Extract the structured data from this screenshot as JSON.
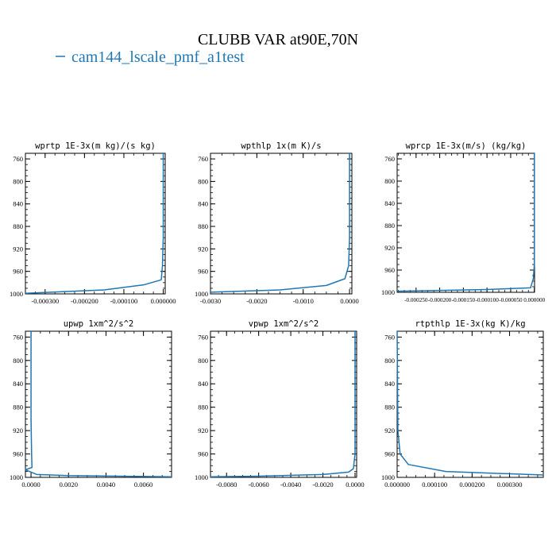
{
  "figure": {
    "title": "CLUBB VAR at90E,70N",
    "legend_label": "cam144_lscale_pmf_a1test",
    "legend_color": "#1f77b4",
    "line_color": "#1f77b4"
  },
  "chart_data": [
    {
      "type": "line",
      "title": "wprtp  1E-3x(m kg)/(s kg)",
      "xlim": [
        -0.00035,
        5e-06
      ],
      "ylim": [
        1000,
        750
      ],
      "xticks": [
        -0.0003,
        -0.0002,
        -0.0001,
        0.0
      ],
      "xtick_labels": [
        "-0.000300",
        "-0.000200",
        "-0.000100",
        "0.000000"
      ],
      "yticks": [
        760,
        800,
        840,
        880,
        920,
        960,
        1000
      ],
      "ytick_labels": [
        "760",
        "800",
        "840",
        "880",
        "920",
        "960",
        "1000"
      ],
      "series": [
        {
          "x": [
            0,
            0,
            0,
            -2e-06,
            -5e-06,
            -5e-05,
            -0.00015,
            -0.00035
          ],
          "y": [
            750,
            800,
            900,
            950,
            975,
            984,
            993,
            999
          ]
        }
      ]
    },
    {
      "type": "line",
      "title": "wpthlp  1x(m K)/s",
      "xlim": [
        -0.003,
        5e-05
      ],
      "ylim": [
        1000,
        750
      ],
      "xticks": [
        -0.003,
        -0.002,
        -0.001,
        0.0
      ],
      "xtick_labels": [
        "-0.0030",
        "-0.0020",
        "-0.0010",
        "0.0000"
      ],
      "yticks": [
        760,
        800,
        840,
        880,
        920,
        960,
        1000
      ],
      "ytick_labels": [
        "760",
        "800",
        "840",
        "880",
        "920",
        "960",
        "1000"
      ],
      "series": [
        {
          "x": [
            0,
            0,
            0,
            -2e-05,
            -0.0001,
            -0.0005,
            -0.0015,
            -0.003
          ],
          "y": [
            750,
            800,
            900,
            950,
            973,
            985,
            993,
            997
          ]
        }
      ]
    },
    {
      "type": "line",
      "title": "wprcp  1E-3x(m/s) (kg/kg)",
      "xlim": [
        -0.00029,
        5e-07
      ],
      "ylim": [
        1000,
        750
      ],
      "xticks": [
        -0.00025,
        -0.0002,
        -0.00015,
        -0.0001,
        -5e-05,
        0.0
      ],
      "xtick_labels": [
        "-0.000250",
        "-0.000200",
        "-0.000150",
        "-0.000100",
        "-0.000050",
        "0.000000"
      ],
      "yticks": [
        760,
        800,
        840,
        880,
        920,
        960,
        1000
      ],
      "ytick_labels": [
        "760",
        "800",
        "840",
        "880",
        "920",
        "960",
        "1000"
      ],
      "series": [
        {
          "x": [
            0,
            0,
            0,
            -2e-06,
            -8e-06,
            -0.0001,
            -0.00029
          ],
          "y": [
            750,
            800,
            950,
            975,
            992,
            995,
            998
          ]
        }
      ]
    },
    {
      "type": "line",
      "title": "upwp  1xm^2/s^2",
      "xlim": [
        -0.0003,
        0.0075
      ],
      "ylim": [
        1000,
        750
      ],
      "xticks": [
        0.0,
        0.002,
        0.004,
        0.006
      ],
      "xtick_labels": [
        "0.0000",
        "0.0020",
        "0.0040",
        "0.0060"
      ],
      "yticks": [
        760,
        800,
        840,
        880,
        920,
        960,
        1000
      ],
      "ytick_labels": [
        "760",
        "800",
        "840",
        "880",
        "920",
        "960",
        "1000"
      ],
      "series": [
        {
          "x": [
            0,
            0,
            3e-05,
            5e-05,
            -0.0003,
            0.0003,
            0.002,
            0.0075
          ],
          "y": [
            750,
            900,
            960,
            983,
            987,
            995,
            997,
            999
          ]
        }
      ]
    },
    {
      "type": "line",
      "title": "vpwp  1xm^2/s^2",
      "xlim": [
        -0.009,
        0.0001
      ],
      "ylim": [
        1000,
        750
      ],
      "xticks": [
        -0.008,
        -0.006,
        -0.004,
        -0.002,
        0.0
      ],
      "xtick_labels": [
        "-0.0080",
        "-0.0060",
        "-0.0040",
        "-0.0020",
        "0.0000"
      ],
      "yticks": [
        760,
        800,
        840,
        880,
        920,
        960,
        1000
      ],
      "ytick_labels": [
        "760",
        "800",
        "840",
        "880",
        "920",
        "960",
        "1000"
      ],
      "series": [
        {
          "x": [
            0,
            0,
            0,
            -0.0001,
            -0.0004,
            -0.002,
            -0.006,
            -0.009
          ],
          "y": [
            750,
            900,
            960,
            985,
            991,
            995,
            998,
            999
          ]
        }
      ]
    },
    {
      "type": "line",
      "title": "rtpthlp  1E-3x(kg K)/kg",
      "xlim": [
        0,
        0.00039
      ],
      "ylim": [
        1000,
        750
      ],
      "xticks": [
        0.0,
        0.0001,
        0.0002,
        0.0003
      ],
      "xtick_labels": [
        "0.000000",
        "0.000100",
        "0.000200",
        "0.000300"
      ],
      "yticks": [
        760,
        800,
        840,
        880,
        920,
        960,
        1000
      ],
      "ytick_labels": [
        "760",
        "800",
        "840",
        "880",
        "920",
        "960",
        "1000"
      ],
      "series": [
        {
          "x": [
            0,
            2e-06,
            8e-06,
            3e-05,
            0.00013,
            0.00039
          ],
          "y": [
            750,
            920,
            960,
            978,
            990,
            996
          ]
        }
      ]
    }
  ]
}
